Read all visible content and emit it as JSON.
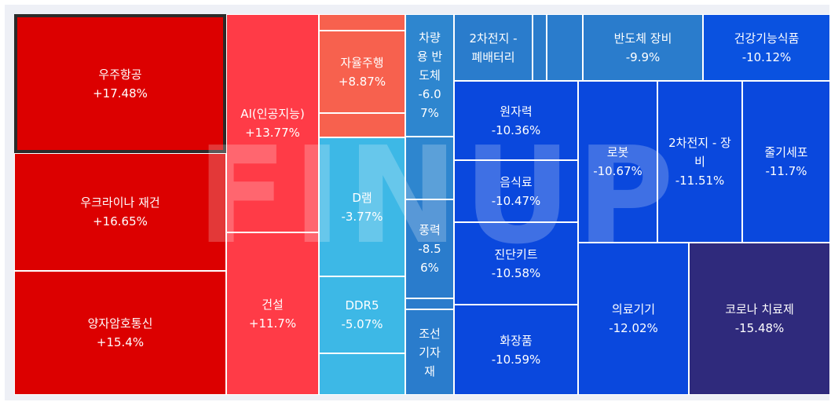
{
  "watermark": "FINUP",
  "chart_data": {
    "type": "treemap",
    "items": [
      {
        "name": "우주항공",
        "value": "+17.48%",
        "pct": 17.48,
        "color": "#dc0000",
        "selected": true
      },
      {
        "name": "우크라이나 재건",
        "value": "+16.65%",
        "pct": 16.65,
        "color": "#dc0000"
      },
      {
        "name": "양자암호통신",
        "value": "+15.4%",
        "pct": 15.4,
        "color": "#dc0000"
      },
      {
        "name": "AI(인공지능)",
        "value": "+13.77%",
        "pct": 13.77,
        "color": "#ff3b47"
      },
      {
        "name": "건설",
        "value": "+11.7%",
        "pct": 11.7,
        "color": "#ff3b47"
      },
      {
        "name": "",
        "value": "",
        "pct": null,
        "color": "#f7614e"
      },
      {
        "name": "자율주행",
        "value": "+8.87%",
        "pct": 8.87,
        "color": "#f7614e"
      },
      {
        "name": "",
        "value": "",
        "pct": null,
        "color": "#f7614e"
      },
      {
        "name": "D램",
        "value": "-3.77%",
        "pct": -3.77,
        "color": "#3db8e6"
      },
      {
        "name": "DDR5",
        "value": "-5.07%",
        "pct": -5.07,
        "color": "#3db8e6"
      },
      {
        "name": "",
        "value": "",
        "pct": null,
        "color": "#3db8e6"
      },
      {
        "name": "차량\n용 반\n도체",
        "value": "-6.0\n7%",
        "pct": -6.07,
        "color": "#2e86cf"
      },
      {
        "name": "",
        "value": "",
        "pct": null,
        "color": "#2e86cf"
      },
      {
        "name": "풍력",
        "value": "-8.5\n6%",
        "pct": -8.56,
        "color": "#2a7ccc"
      },
      {
        "name": "",
        "value": "",
        "pct": null,
        "color": "#2a7ccc"
      },
      {
        "name": "조선\n기자\n재",
        "value": "",
        "pct": null,
        "color": "#2a7ccc"
      },
      {
        "name": "2차전지 -\n폐배터리",
        "value": "",
        "pct": null,
        "color": "#2a7ccc"
      },
      {
        "name": "",
        "value": "",
        "pct": null,
        "color": "#2a7ccc"
      },
      {
        "name": "",
        "value": "",
        "pct": null,
        "color": "#2a7ccc"
      },
      {
        "name": "반도체 장비",
        "value": "-9.9%",
        "pct": -9.9,
        "color": "#2a7ccc"
      },
      {
        "name": "건강기능식품",
        "value": "-10.12%",
        "pct": -10.12,
        "color": "#0a52e0"
      },
      {
        "name": "원자력",
        "value": "-10.36%",
        "pct": -10.36,
        "color": "#0a48dd"
      },
      {
        "name": "음식료",
        "value": "-10.47%",
        "pct": -10.47,
        "color": "#0a48dd"
      },
      {
        "name": "진단키트",
        "value": "-10.58%",
        "pct": -10.58,
        "color": "#0a48dd"
      },
      {
        "name": "화장품",
        "value": "-10.59%",
        "pct": -10.59,
        "color": "#0a48dd"
      },
      {
        "name": "로봇",
        "value": "-10.67%",
        "pct": -10.67,
        "color": "#0a48dd"
      },
      {
        "name": "2차전지 - 장\n비",
        "value": "-11.51%",
        "pct": -11.51,
        "color": "#0a48dd"
      },
      {
        "name": "줄기세포",
        "value": "-11.7%",
        "pct": -11.7,
        "color": "#0a48dd"
      },
      {
        "name": "의료기기",
        "value": "-12.02%",
        "pct": -12.02,
        "color": "#0a48dd"
      },
      {
        "name": "코로나 치료제",
        "value": "-15.48%",
        "pct": -15.48,
        "color": "#2f2a7c"
      }
    ]
  }
}
